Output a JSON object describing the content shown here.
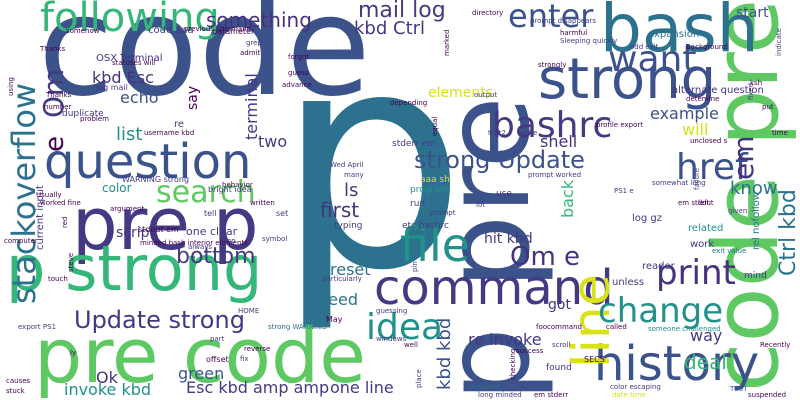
{
  "colors": {
    "background": "#ffffff",
    "navy": "#3b528b",
    "indigo": "#443983",
    "purple": "#46327e",
    "dark_purple": "#440154",
    "teal": "#21918c",
    "teal_blue": "#2c728e",
    "green": "#5ec962",
    "sea_green": "#35b779",
    "lime": "#addc30",
    "yellow": "#d8e219"
  },
  "words": [
    {
      "text": "code"
    },
    {
      "text": "p"
    },
    {
      "text": "pre p"
    },
    {
      "text": "pre code"
    },
    {
      "text": "p strong"
    },
    {
      "text": "question"
    },
    {
      "text": "p pre"
    },
    {
      "text": "code pre"
    },
    {
      "text": "bash"
    },
    {
      "text": "strong"
    },
    {
      "text": "command"
    },
    {
      "text": "file"
    },
    {
      "text": "history"
    },
    {
      "text": "line"
    },
    {
      "text": "following"
    },
    {
      "text": "bashrc"
    },
    {
      "text": "want"
    },
    {
      "text": "idea"
    },
    {
      "text": "change"
    },
    {
      "text": "print"
    },
    {
      "text": "href"
    },
    {
      "text": "stackoverflow"
    },
    {
      "text": "search"
    },
    {
      "text": "Update strong"
    },
    {
      "text": "strong Update"
    },
    {
      "text": "enter"
    },
    {
      "text": "Ctrl kbd"
    },
    {
      "text": "em"
    },
    {
      "text": "Om e"
    },
    {
      "text": "Om"
    },
    {
      "text": "e"
    },
    {
      "text": "mail log"
    },
    {
      "text": "kbd Ctrl"
    },
    {
      "text": "something"
    },
    {
      "text": "bottom"
    },
    {
      "text": "first"
    },
    {
      "text": "echo"
    },
    {
      "text": "list"
    },
    {
      "text": "kbd Esc"
    },
    {
      "text": "know"
    },
    {
      "text": "example"
    },
    {
      "text": "will"
    },
    {
      "text": "shell"
    },
    {
      "text": "reset"
    },
    {
      "text": "need"
    },
    {
      "text": "re invoke"
    },
    {
      "text": "deal"
    },
    {
      "text": "way"
    },
    {
      "text": "Esc kbd amp amp"
    },
    {
      "text": "one line"
    },
    {
      "text": "invoke kbd"
    },
    {
      "text": "green"
    },
    {
      "text": "Ok"
    },
    {
      "text": "kbd kbd"
    },
    {
      "text": "hit kbd"
    },
    {
      "text": "two"
    },
    {
      "text": "terminal"
    },
    {
      "text": "ls"
    },
    {
      "text": "script"
    },
    {
      "text": "say"
    },
    {
      "text": "elements"
    },
    {
      "text": "start"
    },
    {
      "text": "back"
    },
    {
      "text": "got"
    },
    {
      "text": "color"
    },
    {
      "text": "one clear"
    },
    {
      "text": "OSX Terminal"
    },
    {
      "text": "code aaa"
    },
    {
      "text": "prompt disappears"
    },
    {
      "text": "Background"
    },
    {
      "text": "expansion"
    },
    {
      "text": "alternate question"
    },
    {
      "text": "odd exit"
    },
    {
      "text": "harmful"
    },
    {
      "text": "WARNING strong"
    },
    {
      "text": "stdout em"
    },
    {
      "text": "current input"
    },
    {
      "text": "minded bash interior elements"
    },
    {
      "text": "strong WARNING"
    },
    {
      "text": "someone challenged"
    },
    {
      "text": "exit value"
    },
    {
      "text": "log gz"
    },
    {
      "text": "related"
    },
    {
      "text": "work"
    },
    {
      "text": "reader"
    },
    {
      "text": "mind"
    },
    {
      "text": "Recently"
    },
    {
      "text": "suspended"
    },
    {
      "text": "TEST"
    },
    {
      "text": "em stderr"
    },
    {
      "text": "date time"
    },
    {
      "text": "color escaping"
    },
    {
      "text": "found"
    },
    {
      "text": "suspend"
    },
    {
      "text": "causes"
    },
    {
      "text": "stuck"
    },
    {
      "text": "export PS1"
    },
    {
      "text": "computer"
    },
    {
      "text": "stderr em"
    },
    {
      "text": "Wed April"
    },
    {
      "text": "aaa sh"
    },
    {
      "text": "program"
    },
    {
      "text": "etc bashrc"
    },
    {
      "text": "typing"
    },
    {
      "text": "run"
    },
    {
      "text": "use"
    },
    {
      "text": "prompt worked"
    },
    {
      "text": "somewhat long"
    },
    {
      "text": "PS1 e"
    },
    {
      "text": "em stdout"
    },
    {
      "text": "unclosed s"
    },
    {
      "text": "test2"
    },
    {
      "text": "none"
    },
    {
      "text": "depending"
    },
    {
      "text": "output"
    },
    {
      "text": "directory"
    },
    {
      "text": "grep"
    },
    {
      "text": "admit"
    },
    {
      "text": "forgot"
    },
    {
      "text": "guess"
    },
    {
      "text": "advance"
    },
    {
      "text": "parameter"
    },
    {
      "text": "Thanks"
    },
    {
      "text": "number"
    },
    {
      "text": "duplicate"
    },
    {
      "text": "Usually"
    },
    {
      "text": "worked fine"
    },
    {
      "text": "argument"
    },
    {
      "text": "tell"
    },
    {
      "text": "set"
    },
    {
      "text": "written"
    },
    {
      "text": "always"
    },
    {
      "text": "symbol"
    },
    {
      "text": "HOME"
    },
    {
      "text": "May"
    },
    {
      "text": "success"
    },
    {
      "text": "SECS"
    },
    {
      "text": "called"
    },
    {
      "text": "windows"
    },
    {
      "text": "foocommand"
    },
    {
      "text": "unless"
    },
    {
      "text": "problem"
    },
    {
      "text": "statuses will"
    },
    {
      "text": "somehow"
    },
    {
      "text": "log mail"
    },
    {
      "text": "Sleeping quickly"
    },
    {
      "text": "strongly"
    },
    {
      "text": "bright idea"
    },
    {
      "text": "behavior"
    },
    {
      "text": "profile export"
    },
    {
      "text": "previous command"
    },
    {
      "text": "detemine"
    },
    {
      "text": "fixed"
    },
    {
      "text": "ksh"
    },
    {
      "text": "put"
    },
    {
      "text": "time"
    },
    {
      "text": "given"
    },
    {
      "text": "left"
    },
    {
      "text": "particularly"
    },
    {
      "text": "guessing"
    },
    {
      "text": "part"
    },
    {
      "text": "offset"
    },
    {
      "text": "reverse"
    },
    {
      "text": "place"
    },
    {
      "text": "checking"
    },
    {
      "text": "long minded"
    },
    {
      "text": "scroll"
    },
    {
      "text": "fix"
    },
    {
      "text": "equal"
    },
    {
      "text": "marked"
    },
    {
      "text": "many"
    },
    {
      "text": "Thanks"
    },
    {
      "text": "indicate"
    },
    {
      "text": "rel nofollow"
    },
    {
      "text": "username kbd"
    },
    {
      "text": "using"
    },
    {
      "text": "failure"
    },
    {
      "text": "re"
    },
    {
      "text": "amp"
    },
    {
      "text": "red"
    },
    {
      "text": "pin"
    },
    {
      "text": "touch"
    },
    {
      "text": "steve"
    },
    {
      "text": "lot"
    },
    {
      "text": "prompt"
    },
    {
      "text": "well"
    },
    {
      "text": "ly"
    }
  ]
}
